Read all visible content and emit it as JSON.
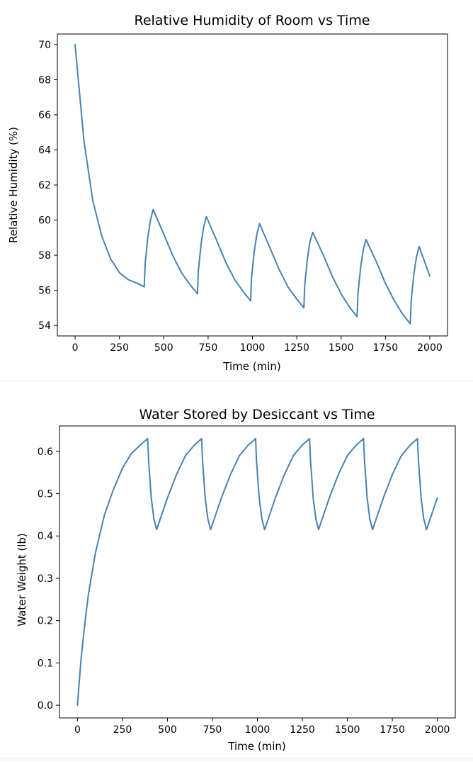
{
  "chart_data": [
    {
      "type": "line",
      "title": "Relative Humidity of Room vs Time",
      "xlabel": "Time (min)",
      "ylabel": "Relative Humidity (%)",
      "xlim": [
        -100,
        2100
      ],
      "ylim": [
        53.4,
        70.6
      ],
      "xticks": [
        0,
        250,
        500,
        750,
        1000,
        1250,
        1500,
        1750,
        2000
      ],
      "yticks": [
        54,
        56,
        58,
        60,
        62,
        64,
        66,
        68,
        70
      ],
      "grid": false,
      "color": "#4682b4",
      "x": [
        0,
        50,
        100,
        150,
        200,
        250,
        300,
        350,
        390,
        395,
        410,
        425,
        440,
        500,
        550,
        600,
        650,
        690,
        695,
        710,
        725,
        740,
        800,
        850,
        900,
        950,
        990,
        995,
        1010,
        1025,
        1040,
        1100,
        1150,
        1200,
        1250,
        1290,
        1295,
        1310,
        1325,
        1340,
        1400,
        1450,
        1500,
        1550,
        1590,
        1595,
        1610,
        1625,
        1640,
        1700,
        1750,
        1800,
        1850,
        1890,
        1895,
        1910,
        1925,
        1940,
        2000
      ],
      "y": [
        70.0,
        64.5,
        61.1,
        59.1,
        57.8,
        57.0,
        56.6,
        56.4,
        56.2,
        57.5,
        59.0,
        60.0,
        60.6,
        59.2,
        58.0,
        57.0,
        56.3,
        55.8,
        57.1,
        58.6,
        59.6,
        60.2,
        58.8,
        57.6,
        56.6,
        55.9,
        55.4,
        56.7,
        58.2,
        59.2,
        59.8,
        58.4,
        57.2,
        56.2,
        55.5,
        55.0,
        56.3,
        57.8,
        58.8,
        59.3,
        58.0,
        56.8,
        55.8,
        55.0,
        54.5,
        55.8,
        57.3,
        58.3,
        58.9,
        57.6,
        56.4,
        55.4,
        54.6,
        54.1,
        55.4,
        56.9,
        57.9,
        58.5,
        56.8
      ]
    },
    {
      "type": "line",
      "title": "Water Stored by Desiccant vs Time",
      "xlabel": "Time (min)",
      "ylabel": "Water Weight (lb)",
      "xlim": [
        -100,
        2100
      ],
      "ylim": [
        -0.03,
        0.66
      ],
      "xticks": [
        0,
        250,
        500,
        750,
        1000,
        1250,
        1500,
        1750,
        2000
      ],
      "yticks": [
        0.0,
        0.1,
        0.2,
        0.3,
        0.4,
        0.5,
        0.6
      ],
      "ytick_labels": [
        "0.0",
        "0.1",
        "0.2",
        "0.3",
        "0.4",
        "0.5",
        "0.6"
      ],
      "grid": false,
      "color": "#4682b4",
      "x": [
        0,
        20,
        40,
        60,
        80,
        100,
        150,
        200,
        250,
        300,
        350,
        390,
        395,
        410,
        425,
        440,
        500,
        550,
        600,
        650,
        690,
        695,
        710,
        725,
        740,
        800,
        850,
        900,
        950,
        990,
        995,
        1010,
        1025,
        1040,
        1100,
        1150,
        1200,
        1250,
        1290,
        1295,
        1310,
        1325,
        1340,
        1400,
        1450,
        1500,
        1550,
        1590,
        1595,
        1610,
        1625,
        1640,
        1700,
        1750,
        1800,
        1850,
        1890,
        1895,
        1910,
        1925,
        1940,
        2000
      ],
      "y": [
        0.0,
        0.11,
        0.19,
        0.26,
        0.31,
        0.36,
        0.45,
        0.51,
        0.56,
        0.595,
        0.615,
        0.63,
        0.58,
        0.49,
        0.44,
        0.415,
        0.49,
        0.545,
        0.59,
        0.615,
        0.63,
        0.58,
        0.49,
        0.44,
        0.415,
        0.49,
        0.545,
        0.59,
        0.615,
        0.63,
        0.58,
        0.49,
        0.44,
        0.415,
        0.49,
        0.545,
        0.59,
        0.615,
        0.63,
        0.58,
        0.49,
        0.44,
        0.415,
        0.49,
        0.545,
        0.59,
        0.615,
        0.63,
        0.58,
        0.49,
        0.44,
        0.415,
        0.49,
        0.545,
        0.59,
        0.615,
        0.63,
        0.58,
        0.49,
        0.44,
        0.415,
        0.49
      ]
    }
  ]
}
